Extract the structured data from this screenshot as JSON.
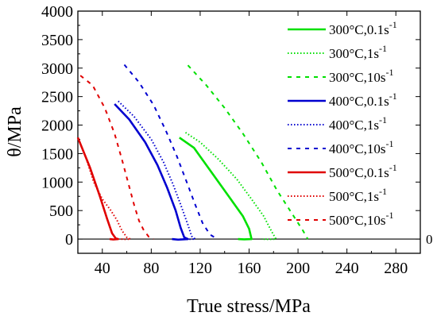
{
  "chart_data": {
    "type": "line",
    "title": "",
    "xlabel": "True stress/MPa",
    "ylabel": "θ/MPa",
    "xlim": [
      20,
      300
    ],
    "ylim": [
      -250,
      4000
    ],
    "xticks": [
      40,
      80,
      120,
      160,
      200,
      240,
      280
    ],
    "yticks": [
      0,
      500,
      1000,
      1500,
      2000,
      2500,
      3000,
      3500,
      4000
    ],
    "zero_line_label": "0",
    "grid": false,
    "legend_position": "top-right",
    "series": [
      {
        "name": "300°C,0.1s",
        "sup": "-1",
        "color": "#00e000",
        "dash": "solid",
        "points": [
          [
            103,
            1780
          ],
          [
            115,
            1600
          ],
          [
            125,
            1300
          ],
          [
            135,
            1000
          ],
          [
            145,
            700
          ],
          [
            155,
            400
          ],
          [
            160,
            180
          ],
          [
            162,
            0
          ],
          [
            156,
            -5
          ],
          [
            151,
            0
          ]
        ]
      },
      {
        "name": "300°C,1s",
        "sup": "-1",
        "color": "#00e000",
        "dash": "dotted",
        "points": [
          [
            108,
            1870
          ],
          [
            120,
            1700
          ],
          [
            135,
            1400
          ],
          [
            150,
            1050
          ],
          [
            162,
            700
          ],
          [
            172,
            400
          ],
          [
            178,
            150
          ],
          [
            182,
            0
          ],
          [
            176,
            -5
          ],
          [
            170,
            0
          ]
        ]
      },
      {
        "name": "300°C,10s",
        "sup": "-1",
        "color": "#00e000",
        "dash": "dashed",
        "points": [
          [
            110,
            3050
          ],
          [
            125,
            2700
          ],
          [
            140,
            2300
          ],
          [
            155,
            1850
          ],
          [
            170,
            1350
          ],
          [
            183,
            850
          ],
          [
            195,
            450
          ],
          [
            204,
            150
          ],
          [
            208,
            0
          ]
        ]
      },
      {
        "name": "400°C,0.1s",
        "sup": "-1",
        "color": "#0000d0",
        "dash": "solid",
        "points": [
          [
            50,
            2370
          ],
          [
            62,
            2100
          ],
          [
            75,
            1700
          ],
          [
            85,
            1300
          ],
          [
            93,
            900
          ],
          [
            100,
            500
          ],
          [
            104,
            200
          ],
          [
            107,
            30
          ],
          [
            110,
            0
          ],
          [
            102,
            -10
          ],
          [
            97,
            0
          ]
        ]
      },
      {
        "name": "400°C,1s",
        "sup": "-1",
        "color": "#0000d0",
        "dash": "dotted",
        "points": [
          [
            53,
            2420
          ],
          [
            66,
            2150
          ],
          [
            80,
            1750
          ],
          [
            90,
            1350
          ],
          [
            98,
            950
          ],
          [
            105,
            550
          ],
          [
            110,
            250
          ],
          [
            113,
            50
          ],
          [
            116,
            0
          ],
          [
            108,
            -5
          ],
          [
            104,
            0
          ]
        ]
      },
      {
        "name": "400°C,10s",
        "sup": "-1",
        "color": "#0000d0",
        "dash": "dashed",
        "points": [
          [
            58,
            3060
          ],
          [
            70,
            2750
          ],
          [
            82,
            2350
          ],
          [
            92,
            1900
          ],
          [
            101,
            1450
          ],
          [
            109,
            1000
          ],
          [
            116,
            600
          ],
          [
            122,
            280
          ],
          [
            128,
            80
          ],
          [
            134,
            0
          ]
        ]
      },
      {
        "name": "500°C,0.1s",
        "sup": "-1",
        "color": "#e00000",
        "dash": "solid",
        "points": [
          [
            20,
            1780
          ],
          [
            30,
            1250
          ],
          [
            38,
            750
          ],
          [
            44,
            350
          ],
          [
            48,
            100
          ],
          [
            51,
            10
          ],
          [
            53,
            0
          ],
          [
            49,
            -8
          ],
          [
            46,
            0
          ]
        ]
      },
      {
        "name": "500°C,1s",
        "sup": "-1",
        "color": "#e00000",
        "dash": "dotted",
        "points": [
          [
            20,
            1780
          ],
          [
            27,
            1400
          ],
          [
            33,
            1000
          ],
          [
            40,
            700
          ],
          [
            47,
            500
          ],
          [
            52,
            330
          ],
          [
            56,
            150
          ],
          [
            60,
            30
          ],
          [
            63,
            0
          ],
          [
            59,
            -5
          ],
          [
            55,
            0
          ]
        ]
      },
      {
        "name": "500°C,10s",
        "sup": "-1",
        "color": "#e00000",
        "dash": "dashed",
        "points": [
          [
            22,
            2870
          ],
          [
            32,
            2700
          ],
          [
            42,
            2300
          ],
          [
            50,
            1850
          ],
          [
            56,
            1400
          ],
          [
            61,
            1000
          ],
          [
            66,
            600
          ],
          [
            70,
            320
          ],
          [
            74,
            150
          ],
          [
            78,
            40
          ],
          [
            82,
            0
          ]
        ]
      }
    ]
  }
}
